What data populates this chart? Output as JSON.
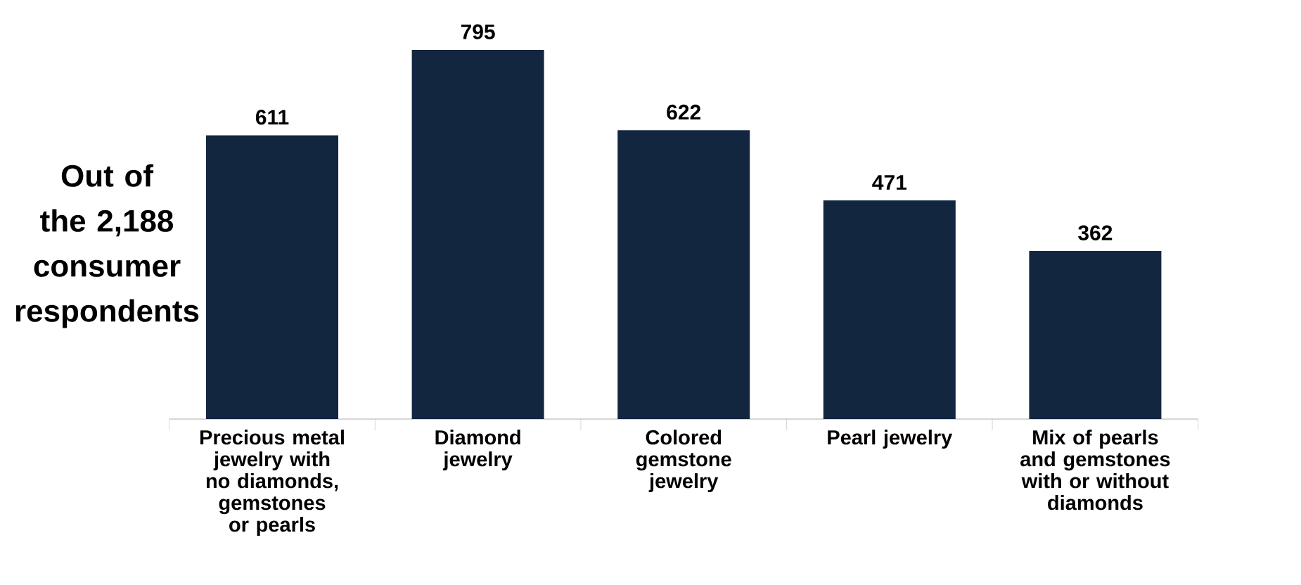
{
  "chart_data": {
    "type": "bar",
    "ylabel": "Out of the 2,188 consumer respondents",
    "categories": [
      "Precious metal jewelry with no diamonds, gemstones or pearls",
      "Diamond jewelry",
      "Colored gemstone jewelry",
      "Pearl jewelry",
      "Mix of pearls and gemstones with or without diamonds"
    ],
    "values": [
      611,
      795,
      622,
      471,
      362
    ],
    "color": "#132640",
    "data_labels": true
  }
}
